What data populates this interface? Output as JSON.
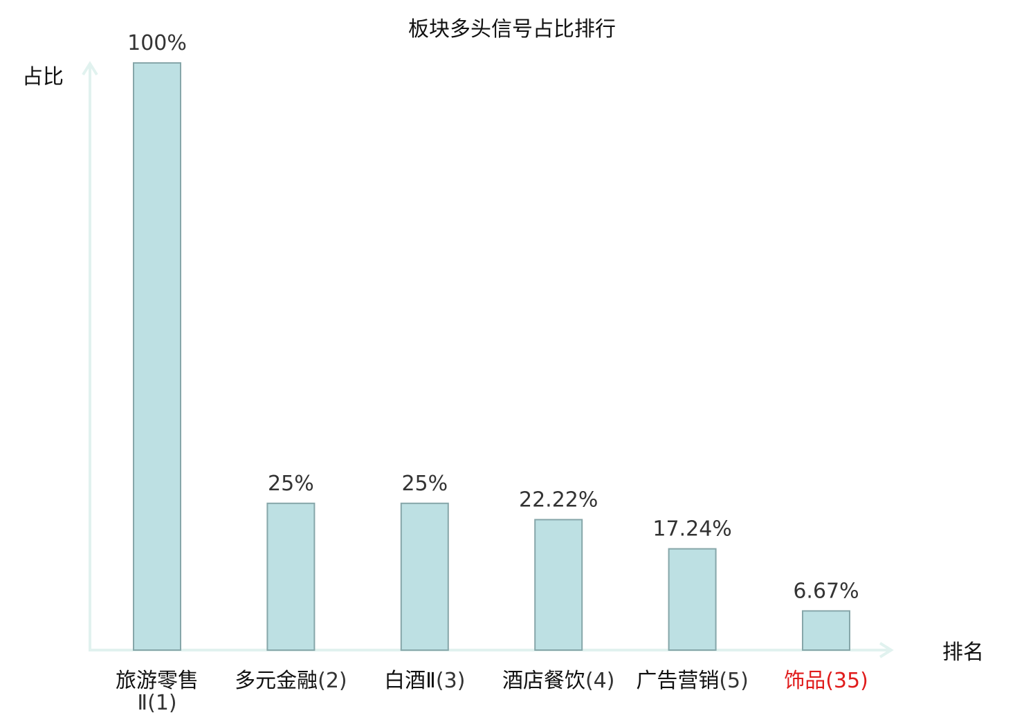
{
  "chart_data": {
    "type": "bar",
    "title": "板块多头信号占比排行",
    "ylabel": "占比",
    "xlabel": "排名",
    "ylim": [
      0,
      100
    ],
    "grid": false,
    "categories": [
      {
        "name": "旅游零售",
        "name_cont": "Ⅱ",
        "rank": "(1)",
        "highlight": false
      },
      {
        "name": "多元金融",
        "name_cont": "",
        "rank": "(2)",
        "highlight": false
      },
      {
        "name": "白酒Ⅱ",
        "name_cont": "",
        "rank": "(3)",
        "highlight": false
      },
      {
        "name": "酒店餐饮",
        "name_cont": "",
        "rank": "(4)",
        "highlight": false
      },
      {
        "name": "广告营销",
        "name_cont": "",
        "rank": "(5)",
        "highlight": false
      },
      {
        "name": "饰品",
        "name_cont": "",
        "rank": "(35)",
        "highlight": true
      }
    ],
    "values": [
      100,
      25,
      25,
      22.22,
      17.24,
      6.67
    ],
    "value_labels": [
      "100%",
      "25%",
      "25%",
      "22.22%",
      "17.24%",
      "6.67%"
    ],
    "colors": {
      "bar_fill": "#bde0e3",
      "bar_stroke": "#86a6a9",
      "axis": "#e1f2ef",
      "label_text": "#333333",
      "highlight_text": "#e01c1c",
      "title_text": "#111111"
    }
  }
}
